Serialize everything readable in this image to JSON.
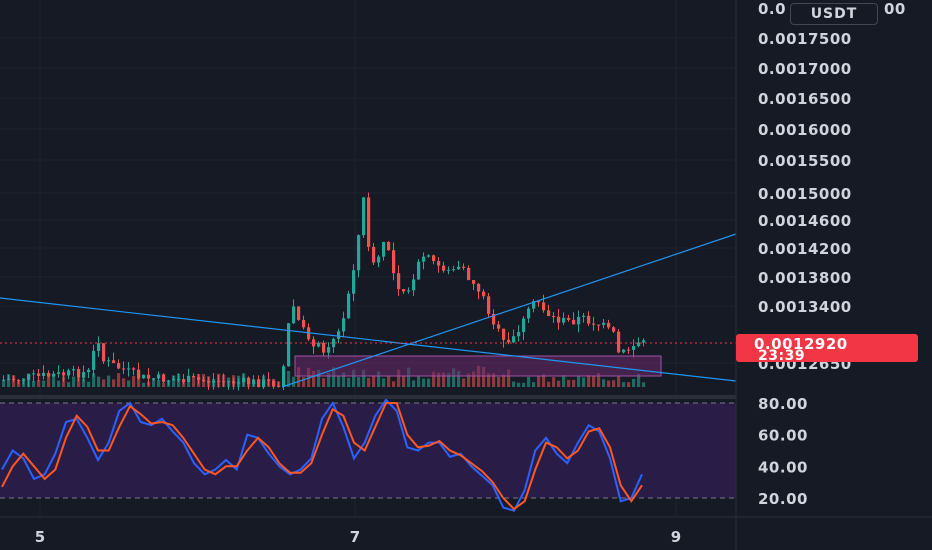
{
  "chart_data": [
    {
      "type": "candlestick",
      "quote_currency": "USDT",
      "y_ticks": [
        {
          "value": 0.00175,
          "label": "0.0017500"
        },
        {
          "value": 0.0017,
          "label": "0.0017000"
        },
        {
          "value": 0.00165,
          "label": "0.0016500"
        },
        {
          "value": 0.0016,
          "label": "0.0016000"
        },
        {
          "value": 0.00155,
          "label": "0.0015500"
        },
        {
          "value": 0.0015,
          "label": "0.0015000"
        },
        {
          "value": 0.00146,
          "label": "0.0014600"
        },
        {
          "value": 0.00142,
          "label": "0.0014200"
        },
        {
          "value": 0.00138,
          "label": "0.0013800"
        },
        {
          "value": 0.00134,
          "label": "0.0013400"
        },
        {
          "value": 0.001265,
          "label": "0.0012650"
        }
      ],
      "x_ticks": [
        {
          "value": 5,
          "label": "5"
        },
        {
          "value": 7,
          "label": "7"
        },
        {
          "value": 9,
          "label": "9"
        }
      ],
      "last_price": {
        "value": 0.001292,
        "label": "0.0012920",
        "countdown": "23:39"
      },
      "colors": {
        "up": "#26a69a",
        "down": "#ef5350",
        "trendline": "#2196f3",
        "grid": "#232632",
        "background": "#161a25"
      }
    },
    {
      "type": "line",
      "indicator": "stochastic",
      "y_ticks": [
        {
          "value": 80,
          "label": "80.00"
        },
        {
          "value": 60,
          "label": "60.00"
        },
        {
          "value": 40,
          "label": "40.00"
        },
        {
          "value": 20,
          "label": "20.00"
        }
      ],
      "bands": {
        "upper": 80,
        "lower": 20
      },
      "series": [
        {
          "color": "#2962ff",
          "values": [
            38,
            50,
            45,
            32,
            35,
            48,
            68,
            70,
            58,
            44,
            55,
            75,
            80,
            68,
            66,
            70,
            62,
            55,
            42,
            35,
            38,
            44,
            38,
            60,
            58,
            48,
            40,
            35,
            38,
            45,
            70,
            80,
            65,
            45,
            55,
            72,
            82,
            75,
            52,
            50,
            55,
            55,
            46,
            48,
            40,
            34,
            28,
            14,
            12,
            25,
            50,
            58,
            48,
            42,
            55,
            66,
            62,
            45,
            18,
            20,
            35
          ]
        },
        {
          "color": "#ff5722",
          "values": [
            27,
            40,
            48,
            40,
            32,
            38,
            58,
            72,
            65,
            50,
            50,
            65,
            78,
            73,
            67,
            68,
            66,
            58,
            48,
            38,
            35,
            40,
            40,
            50,
            58,
            52,
            42,
            36,
            36,
            42,
            60,
            76,
            72,
            55,
            50,
            65,
            80,
            80,
            60,
            52,
            53,
            56,
            50,
            47,
            42,
            37,
            30,
            20,
            13,
            18,
            38,
            55,
            52,
            45,
            50,
            62,
            64,
            52,
            28,
            18,
            28
          ]
        }
      ]
    }
  ]
}
